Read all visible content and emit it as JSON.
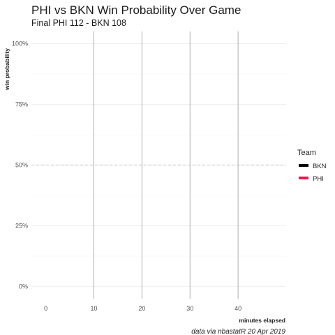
{
  "chart_data": {
    "type": "line",
    "title": "PHI vs BKN Win Probability Over Game",
    "subtitle": "Final PHI 112 - BKN 108",
    "xlabel": "minutes elapsed",
    "ylabel": "win probability",
    "caption": "data via nbastatR 20 Apr 2019",
    "xlim": [
      -3,
      50
    ],
    "ylim": [
      -0.05,
      1.05
    ],
    "x_ticks": [
      0,
      10,
      20,
      30,
      40
    ],
    "y_ticks": [
      0,
      0.25,
      0.5,
      0.75,
      1.0
    ],
    "y_tick_labels": [
      "0%",
      "25%",
      "50%",
      "75%",
      "100%"
    ],
    "period_lines": [
      10,
      20,
      30,
      40
    ],
    "reference_line": 0.5,
    "grid": true,
    "legend": {
      "title": "Team",
      "position": "right",
      "entries": [
        {
          "label": "BKN",
          "color": "#000000"
        },
        {
          "label": "PHI",
          "color": "#ED174C"
        }
      ]
    },
    "series": []
  }
}
